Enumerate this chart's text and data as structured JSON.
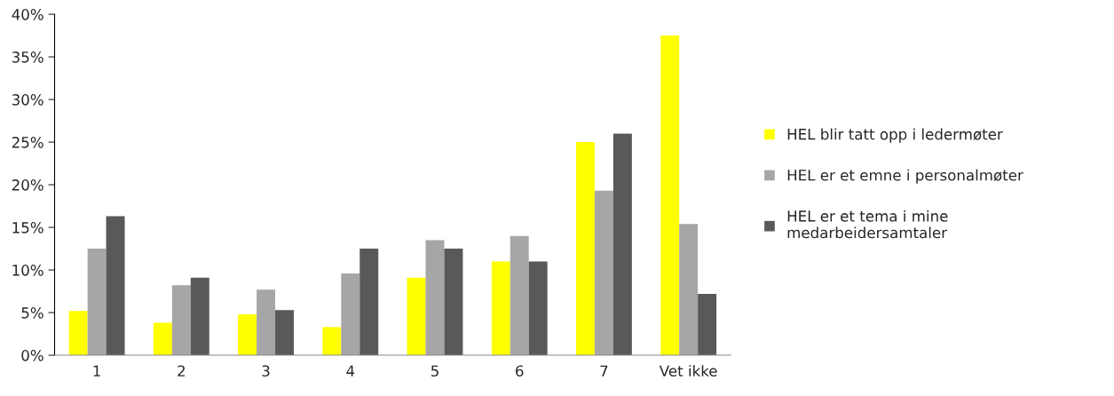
{
  "chart_data": {
    "type": "bar",
    "categories": [
      "1",
      "2",
      "3",
      "4",
      "5",
      "6",
      "7",
      "Vet ikke"
    ],
    "series": [
      {
        "name": "HEL blir tatt opp i ledermøter",
        "color": "#ffff00",
        "values": [
          5.2,
          3.8,
          4.8,
          3.3,
          9.1,
          11.0,
          25.0,
          37.5
        ]
      },
      {
        "name": "HEL er et emne i personalmøter",
        "color": "#a6a6a6",
        "values": [
          12.5,
          8.2,
          7.7,
          9.6,
          13.5,
          14.0,
          19.3,
          15.4
        ]
      },
      {
        "name": "HEL er et tema i mine\nmedarbeidersamtaler",
        "color": "#595959",
        "values": [
          16.3,
          9.1,
          5.3,
          12.5,
          12.5,
          11.0,
          26.0,
          7.2
        ]
      }
    ],
    "ylim": [
      0,
      40
    ],
    "yticks": [
      {
        "value": 0,
        "label": "0%"
      },
      {
        "value": 5,
        "label": "5%"
      },
      {
        "value": 10,
        "label": "10%"
      },
      {
        "value": 15,
        "label": "15%"
      },
      {
        "value": 20,
        "label": "20%"
      },
      {
        "value": 25,
        "label": "25%"
      },
      {
        "value": 30,
        "label": "30%"
      },
      {
        "value": 35,
        "label": "35%"
      },
      {
        "value": 40,
        "label": "40%"
      }
    ],
    "grid": false,
    "legend": "right"
  }
}
